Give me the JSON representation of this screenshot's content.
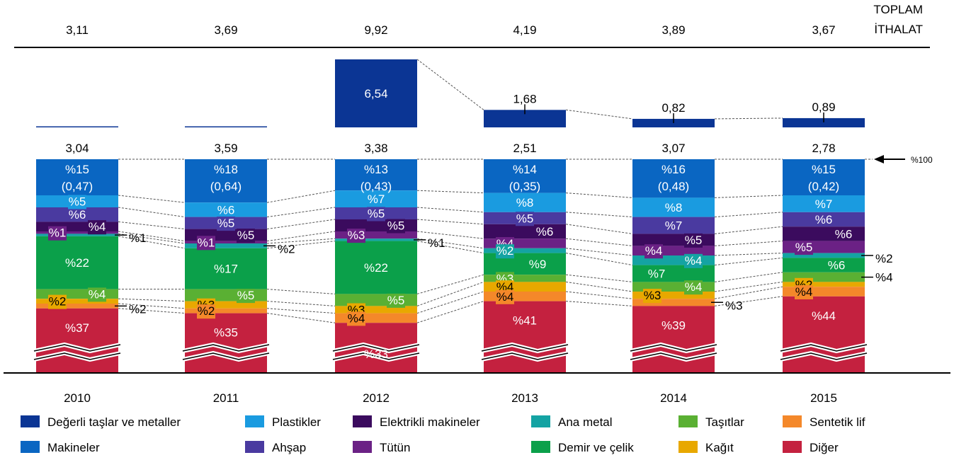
{
  "chart_data": {
    "type": "bar",
    "header": {
      "line1": "TOPLAM",
      "line2": "İTHALAT"
    },
    "reference": "%100",
    "categories": [
      "2010",
      "2011",
      "2012",
      "2013",
      "2014",
      "2015"
    ],
    "totals": [
      "3,11",
      "3,69",
      "9,92",
      "4,19",
      "3,89",
      "3,67"
    ],
    "precious_values": [
      0.07,
      0.1,
      6.54,
      1.68,
      0.82,
      0.89
    ],
    "precious_labels": [
      "",
      "",
      "6,54",
      "1,68",
      "0,82",
      "0,89"
    ],
    "rest_totals": [
      "3,04",
      "3,59",
      "3,38",
      "2,51",
      "3,07",
      "2,78"
    ],
    "series": [
      {
        "key": "makineler",
        "name": "Makineler",
        "color": "#0a66c2",
        "values": [
          15,
          18,
          13,
          14,
          16,
          15
        ],
        "labels": [
          "%15",
          "%18",
          "%13",
          "%14",
          "%16",
          "%15"
        ],
        "sublabels": [
          "(0,47)",
          "(0,64)",
          "(0,43)",
          "(0,35)",
          "(0,48)",
          "(0,42)"
        ]
      },
      {
        "key": "plastikler",
        "name": "Plastikler",
        "color": "#1a9be0",
        "values": [
          5,
          6,
          7,
          8,
          8,
          7
        ],
        "labels": [
          "%5",
          "%6",
          "%7",
          "%8",
          "%8",
          "%7"
        ]
      },
      {
        "key": "ahsap",
        "name": "Ahşap",
        "color": "#4a3aa0",
        "values": [
          6,
          5,
          5,
          5,
          7,
          6
        ],
        "labels": [
          "%6",
          "%5",
          "%5",
          "%5",
          "%7",
          "%6"
        ]
      },
      {
        "key": "elektrikli",
        "name": "Elektrikli makineler",
        "color": "#3b0b5e",
        "values": [
          4,
          5,
          5,
          6,
          5,
          6
        ],
        "labels": [
          "%4",
          "%5",
          "%5",
          "%6",
          "%5",
          "%6"
        ]
      },
      {
        "key": "tutun",
        "name": "Tütün",
        "color": "#6b2185",
        "values": [
          1,
          1,
          3,
          4,
          4,
          5
        ],
        "labels": [
          "%1",
          "%1",
          "%3",
          "%4",
          "%4",
          "%5"
        ]
      },
      {
        "key": "anametal",
        "name": "Ana metal",
        "color": "#14a3a3",
        "values": [
          1,
          2,
          1,
          2,
          4,
          2
        ],
        "labels": [
          "%1",
          "%2",
          "%1",
          "%2",
          "%4",
          "%2"
        ]
      },
      {
        "key": "demir",
        "name": "Demir ve çelik",
        "color": "#0ba04a",
        "values": [
          22,
          17,
          22,
          9,
          7,
          6
        ],
        "labels": [
          "%22",
          "%17",
          "%22",
          "%9",
          "%7",
          "%6"
        ]
      },
      {
        "key": "tasitlar",
        "name": "Taşıtlar",
        "color": "#5ab033",
        "values": [
          4,
          5,
          5,
          3,
          4,
          4
        ],
        "labels": [
          "%4",
          "%5",
          "%5",
          "%3",
          "%4",
          "%4"
        ]
      },
      {
        "key": "kagit",
        "name": "Kağıt",
        "color": "#e8a800",
        "values": [
          2,
          3,
          3,
          4,
          3,
          2
        ],
        "labels": [
          "%2",
          "%3",
          "%3",
          "%4",
          "%3",
          "%2"
        ]
      },
      {
        "key": "sentetik",
        "name": "Sentetik lif",
        "color": "#f4882a",
        "values": [
          2,
          2,
          4,
          4,
          3,
          4
        ],
        "labels": [
          "%2",
          "%2",
          "%4",
          "%4",
          "%3",
          "%4"
        ]
      },
      {
        "key": "diger",
        "name": "Diğer",
        "color": "#c4213f",
        "values": [
          37,
          35,
          33,
          41,
          39,
          44
        ],
        "labels": [
          "%37",
          "%35",
          "%33",
          "%41",
          "%39",
          "%44"
        ]
      }
    ],
    "legend_order": [
      "Değerli taşlar ve metaller",
      "Plastikler",
      "Elektrikli makineler",
      "Ana metal",
      "Taşıtlar",
      "Sentetik lif",
      "Makineler",
      "Ahşap",
      "Tütün",
      "Demir ve çelik",
      "Kağıt",
      "Diğer"
    ],
    "legend_colors": [
      "#0b3594",
      "#1a9be0",
      "#3b0b5e",
      "#14a3a3",
      "#5ab033",
      "#f4882a",
      "#0a66c2",
      "#4a3aa0",
      "#6b2185",
      "#0ba04a",
      "#e8a800",
      "#c4213f"
    ]
  }
}
